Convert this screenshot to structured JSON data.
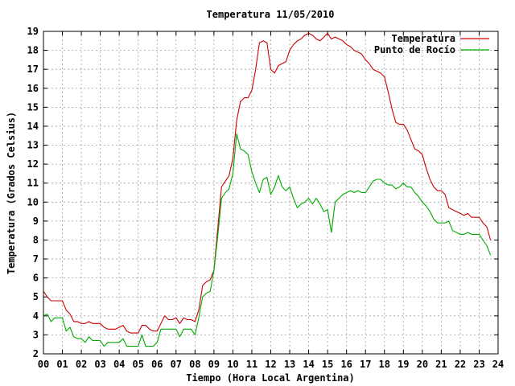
{
  "chart_data": {
    "type": "line",
    "title": "Temperatura 11/05/2010",
    "xlabel": "Tiempo (Hora Local Argentina)",
    "ylabel": "Temperatura (Grados Celsius)",
    "xlim": [
      0,
      24
    ],
    "ylim": [
      2,
      19
    ],
    "grid": true,
    "legend_position": "top-right",
    "x_tick_labels": [
      "00",
      "01",
      "02",
      "03",
      "04",
      "05",
      "06",
      "07",
      "08",
      "09",
      "10",
      "11",
      "12",
      "13",
      "14",
      "15",
      "16",
      "17",
      "18",
      "19",
      "20",
      "21",
      "22",
      "23",
      "24"
    ],
    "y_tick_labels": [
      "2",
      "3",
      "4",
      "5",
      "6",
      "7",
      "8",
      "9",
      "10",
      "11",
      "12",
      "13",
      "14",
      "15",
      "16",
      "17",
      "18",
      "19"
    ],
    "series": [
      {
        "name": "Temperatura",
        "color": "#cc0000",
        "x": [
          0.0,
          0.2,
          0.4,
          0.6,
          0.8,
          1.0,
          1.2,
          1.4,
          1.6,
          1.8,
          2.0,
          2.2,
          2.4,
          2.6,
          2.8,
          3.0,
          3.2,
          3.4,
          3.6,
          3.8,
          4.0,
          4.2,
          4.4,
          4.6,
          4.8,
          5.0,
          5.2,
          5.4,
          5.6,
          5.8,
          6.0,
          6.2,
          6.4,
          6.6,
          6.8,
          7.0,
          7.2,
          7.4,
          7.6,
          7.8,
          8.0,
          8.2,
          8.4,
          8.6,
          8.8,
          9.0,
          9.2,
          9.4,
          9.6,
          9.8,
          10.0,
          10.2,
          10.4,
          10.6,
          10.8,
          11.0,
          11.2,
          11.4,
          11.6,
          11.8,
          12.0,
          12.2,
          12.4,
          12.6,
          12.8,
          13.0,
          13.2,
          13.4,
          13.6,
          13.8,
          14.0,
          14.2,
          14.4,
          14.6,
          14.8,
          15.0,
          15.2,
          15.4,
          15.6,
          15.8,
          16.0,
          16.2,
          16.4,
          16.6,
          16.8,
          17.0,
          17.2,
          17.4,
          17.6,
          17.8,
          18.0,
          18.2,
          18.4,
          18.6,
          18.8,
          19.0,
          19.2,
          19.4,
          19.6,
          19.8,
          20.0,
          20.2,
          20.4,
          20.6,
          20.8,
          21.0,
          21.2,
          21.4,
          21.6,
          21.8,
          22.0,
          22.2,
          22.4,
          22.6,
          22.8,
          23.0,
          23.2,
          23.4,
          23.6
        ],
        "y": [
          5.3,
          5.0,
          4.8,
          4.8,
          4.8,
          4.8,
          4.3,
          4.1,
          3.7,
          3.7,
          3.6,
          3.6,
          3.7,
          3.6,
          3.6,
          3.6,
          3.4,
          3.3,
          3.3,
          3.3,
          3.4,
          3.5,
          3.2,
          3.1,
          3.1,
          3.1,
          3.5,
          3.5,
          3.3,
          3.2,
          3.2,
          3.6,
          4.0,
          3.8,
          3.8,
          3.9,
          3.6,
          3.9,
          3.8,
          3.8,
          3.7,
          4.3,
          5.6,
          5.8,
          5.9,
          6.4,
          8.6,
          10.8,
          11.1,
          11.4,
          12.3,
          14.3,
          15.3,
          15.5,
          15.5,
          15.9,
          17.0,
          18.4,
          18.5,
          18.4,
          17.0,
          16.8,
          17.2,
          17.3,
          17.4,
          18.0,
          18.3,
          18.5,
          18.6,
          18.8,
          18.9,
          18.8,
          18.6,
          18.5,
          18.7,
          18.9,
          18.6,
          18.7,
          18.6,
          18.5,
          18.3,
          18.2,
          18.0,
          17.9,
          17.8,
          17.5,
          17.3,
          17.0,
          16.9,
          16.8,
          16.6,
          15.8,
          14.9,
          14.2,
          14.1,
          14.1,
          13.8,
          13.3,
          12.8,
          12.7,
          12.5,
          11.8,
          11.2,
          10.8,
          10.6,
          10.6,
          10.4,
          9.7,
          9.6,
          9.5,
          9.4,
          9.3,
          9.4,
          9.2,
          9.2,
          9.2,
          8.9,
          8.7,
          8.0
        ]
      },
      {
        "name": "Punto de Rocío",
        "color": "#00aa00",
        "x": [
          0.0,
          0.2,
          0.4,
          0.6,
          0.8,
          1.0,
          1.2,
          1.4,
          1.6,
          1.8,
          2.0,
          2.2,
          2.4,
          2.6,
          2.8,
          3.0,
          3.2,
          3.4,
          3.6,
          3.8,
          4.0,
          4.2,
          4.4,
          4.6,
          4.8,
          5.0,
          5.2,
          5.4,
          5.6,
          5.8,
          6.0,
          6.2,
          6.4,
          6.6,
          6.8,
          7.0,
          7.2,
          7.4,
          7.6,
          7.8,
          8.0,
          8.2,
          8.4,
          8.6,
          8.8,
          9.0,
          9.2,
          9.4,
          9.6,
          9.8,
          10.0,
          10.2,
          10.4,
          10.6,
          10.8,
          11.0,
          11.2,
          11.4,
          11.6,
          11.8,
          12.0,
          12.2,
          12.4,
          12.6,
          12.8,
          13.0,
          13.2,
          13.4,
          13.6,
          13.8,
          14.0,
          14.2,
          14.4,
          14.6,
          14.8,
          15.0,
          15.2,
          15.4,
          15.6,
          15.8,
          16.0,
          16.2,
          16.4,
          16.6,
          16.8,
          17.0,
          17.2,
          17.4,
          17.6,
          17.8,
          18.0,
          18.2,
          18.4,
          18.6,
          18.8,
          19.0,
          19.2,
          19.4,
          19.6,
          19.8,
          20.0,
          20.2,
          20.4,
          20.6,
          20.8,
          21.0,
          21.2,
          21.4,
          21.6,
          21.8,
          22.0,
          22.2,
          22.4,
          22.6,
          22.8,
          23.0,
          23.2,
          23.4,
          23.6
        ],
        "y": [
          4.0,
          4.1,
          3.7,
          3.9,
          3.9,
          3.9,
          3.2,
          3.4,
          2.9,
          2.8,
          2.8,
          2.6,
          2.9,
          2.7,
          2.7,
          2.7,
          2.4,
          2.6,
          2.6,
          2.6,
          2.6,
          2.8,
          2.4,
          2.4,
          2.4,
          2.4,
          3.0,
          2.4,
          2.4,
          2.4,
          2.6,
          3.3,
          3.3,
          3.3,
          3.3,
          3.3,
          2.9,
          3.3,
          3.3,
          3.3,
          3.0,
          3.9,
          5.0,
          5.2,
          5.3,
          6.4,
          8.2,
          10.2,
          10.5,
          10.7,
          11.5,
          13.6,
          12.8,
          12.7,
          12.5,
          11.6,
          11.0,
          10.5,
          11.2,
          11.3,
          10.4,
          10.8,
          11.4,
          10.8,
          10.6,
          10.8,
          10.2,
          9.7,
          9.9,
          10.0,
          10.2,
          9.9,
          10.2,
          9.9,
          9.5,
          9.6,
          8.4,
          10.0,
          10.2,
          10.4,
          10.5,
          10.6,
          10.5,
          10.6,
          10.5,
          10.5,
          10.8,
          11.1,
          11.2,
          11.2,
          11.0,
          10.9,
          10.9,
          10.7,
          10.8,
          11.0,
          10.8,
          10.8,
          10.5,
          10.3,
          10.0,
          9.8,
          9.5,
          9.1,
          8.9,
          8.9,
          8.9,
          9.0,
          8.5,
          8.4,
          8.3,
          8.3,
          8.4,
          8.3,
          8.3,
          8.3,
          8.0,
          7.7,
          7.2
        ]
      }
    ]
  }
}
